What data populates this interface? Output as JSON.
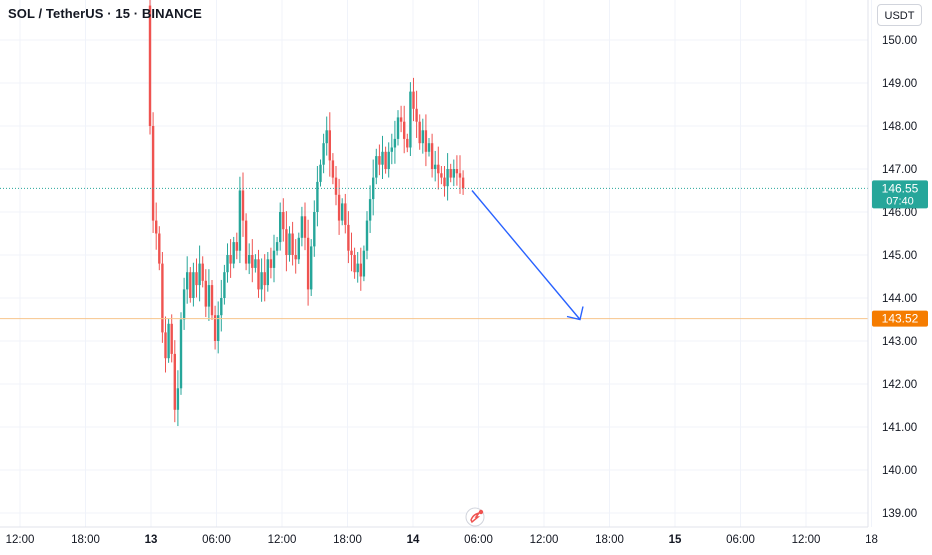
{
  "header": {
    "symbol_title": "SOL / TetherUS · 15 · BINANCE",
    "currency_label": "USDT"
  },
  "colors": {
    "up": "#26a69a",
    "down": "#ef5350",
    "grid": "#f0f3fa",
    "axis_text": "#131722",
    "last_price_line": "#26a69a",
    "target_line": "#f7c58b",
    "target_badge": "#f57c00",
    "arrow": "#2962ff"
  },
  "chart_data": {
    "type": "candlestick",
    "title": "SOL / TetherUS · 15 · BINANCE",
    "interval": "15",
    "xlabel": "",
    "ylabel": "",
    "ylim": [
      138.8,
      150.6
    ],
    "grid": true,
    "y_ticks": [
      "150.00",
      "149.00",
      "148.00",
      "147.00",
      "146.00",
      "145.00",
      "144.00",
      "143.00",
      "142.00",
      "141.00",
      "140.00",
      "139.00"
    ],
    "x_ticks": [
      "12:00",
      "18:00",
      "13",
      "06:00",
      "12:00",
      "18:00",
      "14",
      "06:00",
      "12:00",
      "18:00",
      "15",
      "06:00",
      "12:00",
      "18"
    ],
    "bold_x_ticks": [
      "13",
      "14",
      "15"
    ],
    "last_price": {
      "value": 146.55,
      "label": "146.55",
      "countdown": "07:40"
    },
    "target_level": {
      "value": 143.52,
      "label": "143.52"
    },
    "arrow": {
      "from": {
        "time": "14 05:45",
        "price": 146.5
      },
      "to": {
        "time": "14 15:30",
        "price": 143.5
      }
    },
    "closes": [
      150.8,
      148.0,
      145.8,
      145.5,
      144.8,
      143.2,
      142.6,
      143.4,
      142.7,
      141.4,
      141.9,
      143.5,
      144.2,
      144.6,
      144.0,
      144.6,
      144.3,
      144.8,
      144.4,
      143.8,
      144.3,
      143.6,
      143.0,
      143.6,
      144.0,
      144.6,
      145.0,
      144.8,
      145.3,
      145.1,
      146.5,
      145.8,
      144.8,
      145.0,
      144.7,
      144.9,
      144.2,
      144.6,
      144.3,
      144.9,
      144.7,
      145.1,
      145.3,
      146.0,
      145.6,
      145.0,
      145.5,
      145.0,
      144.9,
      145.4,
      145.9,
      145.4,
      144.2,
      145.2,
      146.0,
      146.7,
      147.1,
      147.6,
      147.9,
      147.2,
      146.8,
      146.4,
      145.8,
      146.2,
      145.7,
      145.1,
      145.0,
      144.6,
      144.8,
      144.5,
      145.1,
      145.8,
      146.3,
      146.8,
      147.3,
      147.1,
      147.4,
      147.0,
      147.4,
      147.5,
      147.7,
      148.2,
      148.1,
      147.7,
      147.5,
      148.8,
      148.4,
      148.1,
      147.6,
      147.9,
      147.4,
      147.6,
      147.0,
      147.1,
      146.9,
      146.8,
      146.6,
      147.0,
      146.8,
      147.0,
      146.9,
      146.8,
      146.55
    ]
  }
}
